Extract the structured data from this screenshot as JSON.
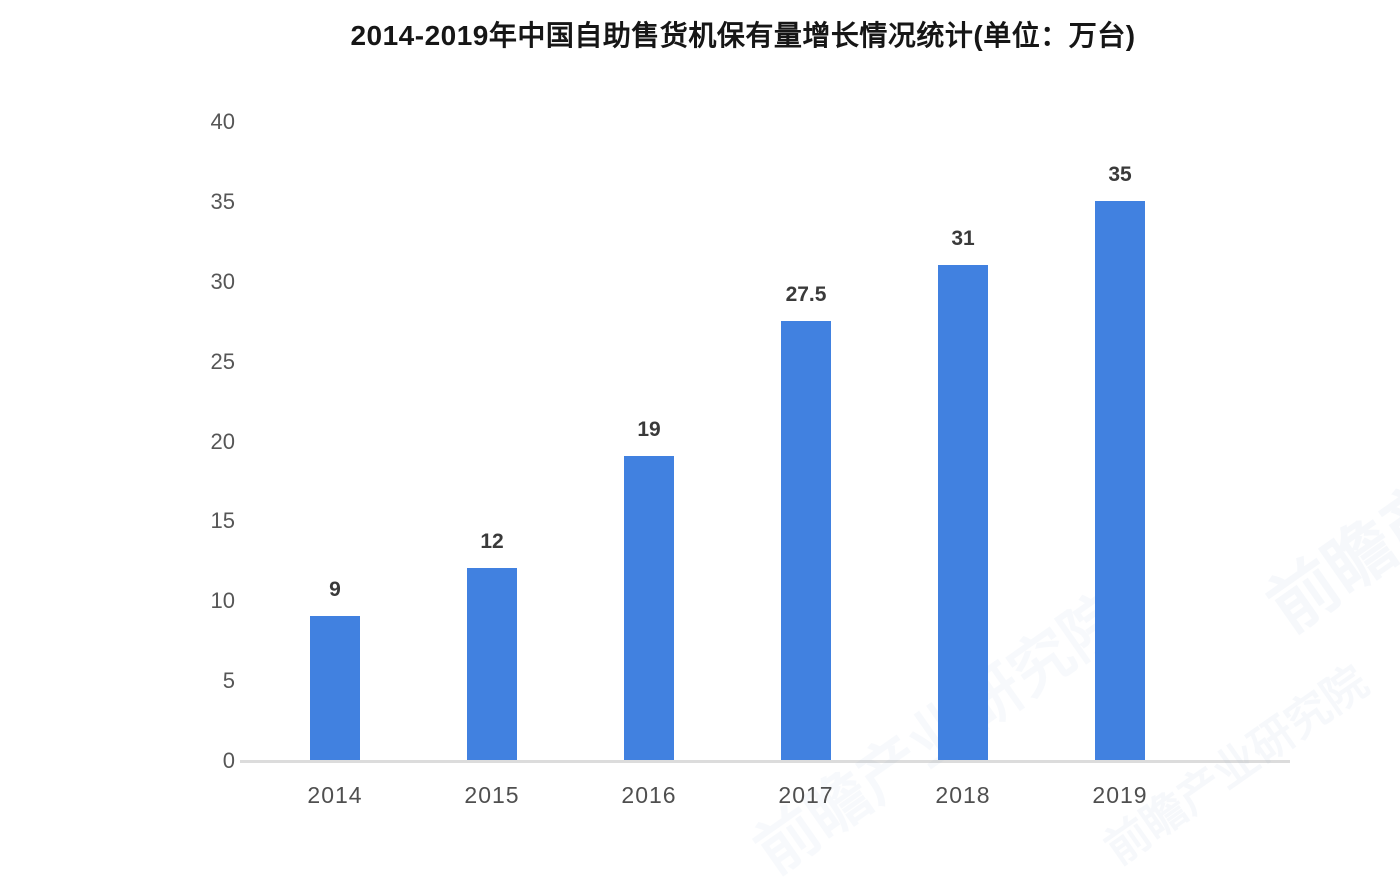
{
  "chart_data": {
    "type": "bar",
    "title": "2014-2019年中国自助售货机保有量增长情况统计(单位：万台)",
    "categories": [
      "2014",
      "2015",
      "2016",
      "2017",
      "2018",
      "2019"
    ],
    "values": [
      9,
      12,
      19,
      27.5,
      31,
      35
    ],
    "value_labels": [
      "9",
      "12",
      "19",
      "27.5",
      "31",
      "35"
    ],
    "xlabel": "",
    "ylabel": "",
    "ylim": [
      0,
      40
    ],
    "yticks": [
      0,
      5,
      10,
      15,
      20,
      25,
      30,
      35,
      40
    ],
    "grid": false,
    "legend": false,
    "unit": "万台",
    "bar_color": "#4181e0"
  },
  "colors": {
    "bar": "#4181e0",
    "axis_line": "#dcdcdc",
    "y_tick_label": "#565656",
    "x_tick_label": "#4f4f4f",
    "value_label": "#3a3a3a",
    "title": "#161616",
    "background": "#ffffff",
    "watermark": "#7d9cc9"
  },
  "watermark": {
    "text": "前瞻产业研究院"
  }
}
